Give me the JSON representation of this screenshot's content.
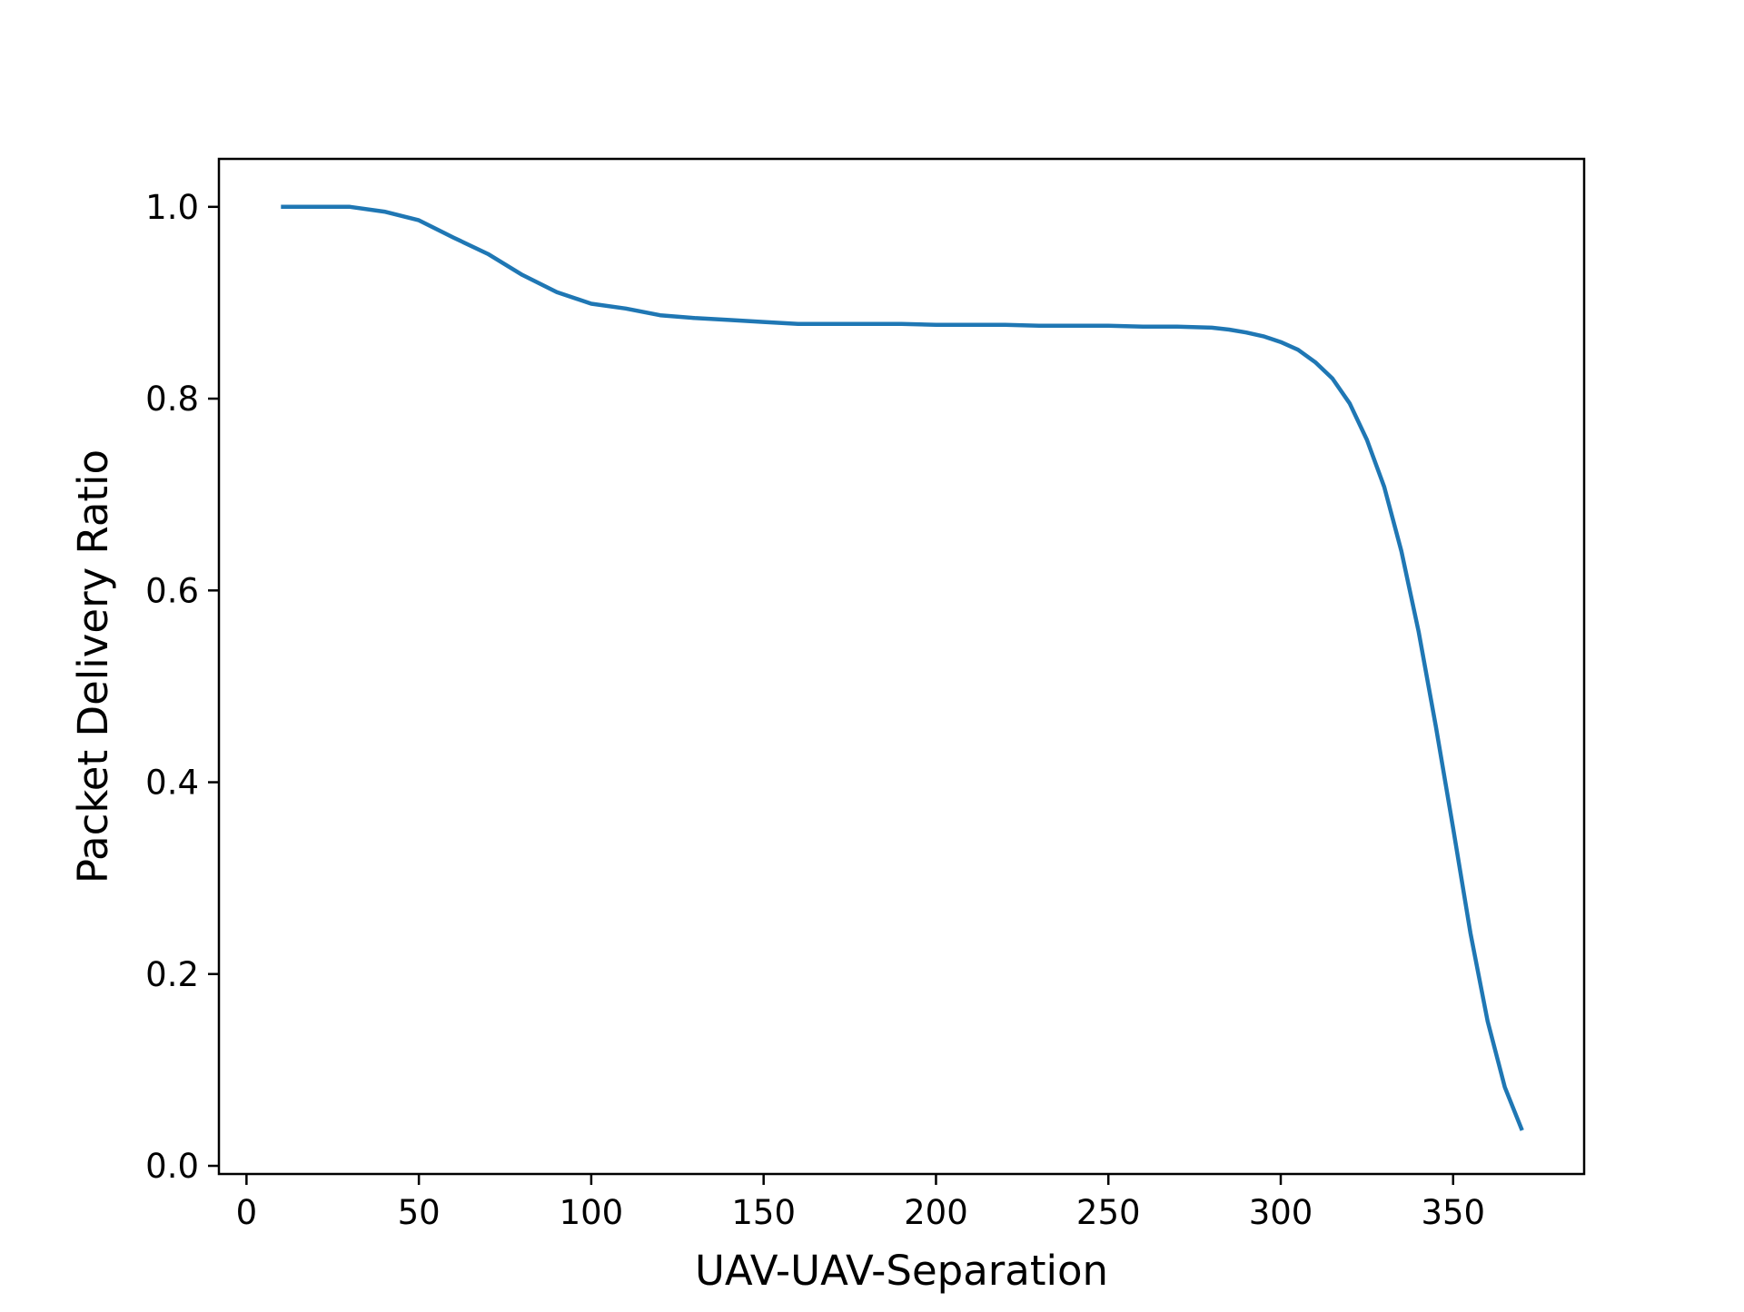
{
  "chart_data": {
    "type": "line",
    "title": "",
    "xlabel": "UAV-UAV-Separation",
    "ylabel": "Packet Delivery Ratio",
    "xlim": [
      -8,
      388
    ],
    "ylim": [
      -0.0085,
      1.05
    ],
    "grid": false,
    "xticks": [
      0,
      50,
      100,
      150,
      200,
      250,
      300,
      350
    ],
    "yticks": [
      0.0,
      0.2,
      0.4,
      0.6,
      0.8,
      1.0
    ],
    "xtick_labels": [
      "0",
      "50",
      "100",
      "150",
      "200",
      "250",
      "300",
      "350"
    ],
    "ytick_labels": [
      "0.0",
      "0.2",
      "0.4",
      "0.6",
      "0.8",
      "1.0"
    ],
    "series": [
      {
        "color": "#1f77b4",
        "x": [
          10,
          20,
          30,
          40,
          50,
          60,
          70,
          80,
          90,
          100,
          110,
          120,
          130,
          140,
          150,
          160,
          170,
          180,
          190,
          200,
          210,
          220,
          230,
          240,
          250,
          260,
          270,
          280,
          285,
          290,
          295,
          300,
          305,
          310,
          315,
          320,
          325,
          330,
          335,
          340,
          345,
          350,
          355,
          360,
          365,
          370
        ],
        "y": [
          1.0,
          1.0,
          1.0,
          0.995,
          0.986,
          0.968,
          0.951,
          0.929,
          0.911,
          0.899,
          0.894,
          0.887,
          0.884,
          0.882,
          0.88,
          0.878,
          0.878,
          0.878,
          0.878,
          0.877,
          0.877,
          0.877,
          0.876,
          0.876,
          0.876,
          0.875,
          0.875,
          0.874,
          0.872,
          0.869,
          0.865,
          0.859,
          0.851,
          0.838,
          0.821,
          0.795,
          0.757,
          0.708,
          0.641,
          0.557,
          0.458,
          0.352,
          0.243,
          0.151,
          0.082,
          0.037
        ]
      }
    ]
  }
}
